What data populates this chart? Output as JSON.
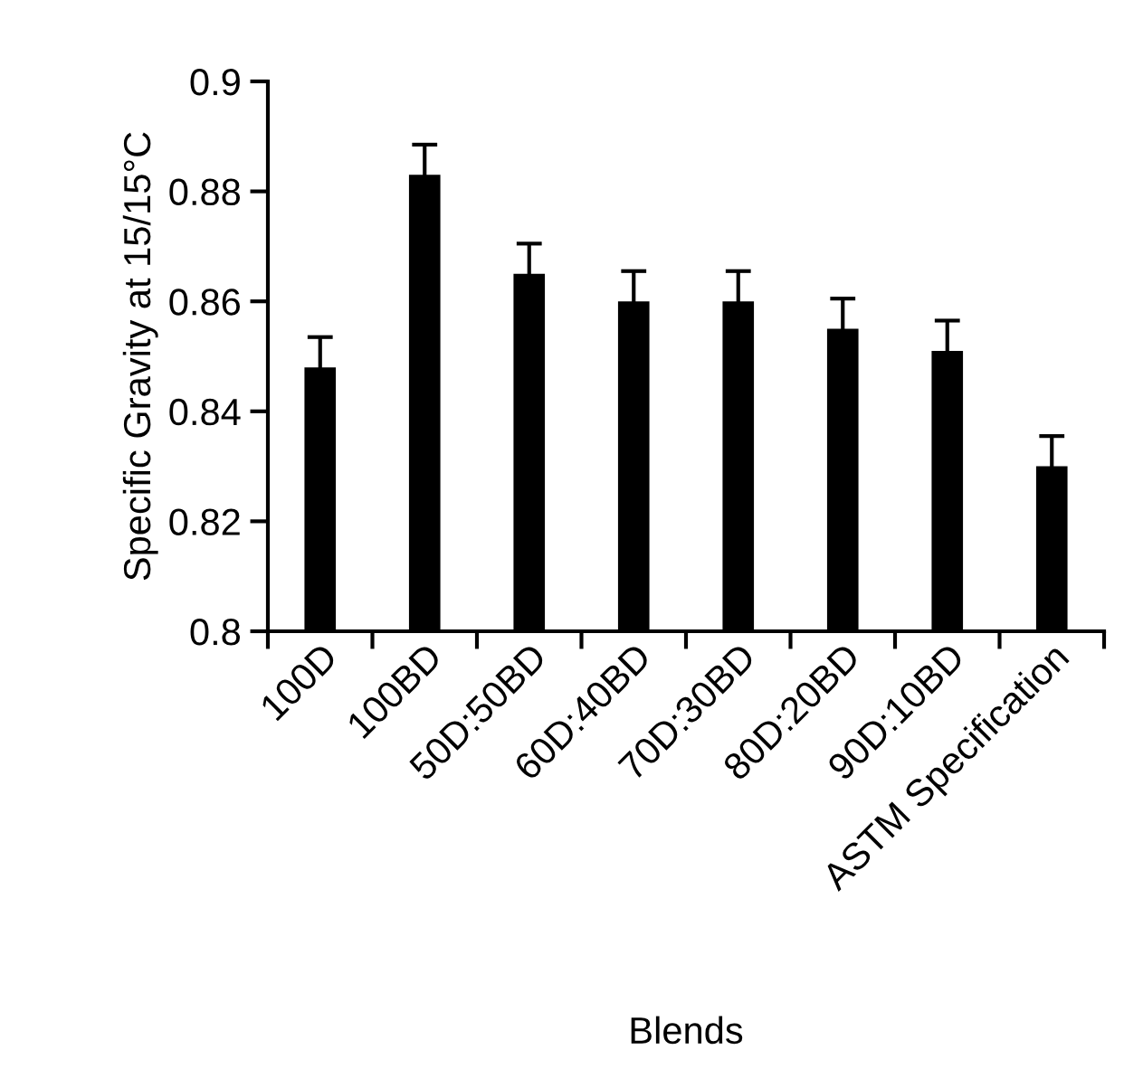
{
  "chart_data": {
    "type": "bar",
    "xlabel": "Blends",
    "ylabel": "Specific Gravity at 15/15°C",
    "categories": [
      "100D",
      "100BD",
      "50D:50BD",
      "60D:40BD",
      "70D:30BD",
      "80D:20BD",
      "90D:10BD",
      "ASTM Specification"
    ],
    "values": [
      0.848,
      0.883,
      0.865,
      0.86,
      0.86,
      0.855,
      0.851,
      0.83
    ],
    "errors": [
      0.0055,
      0.0055,
      0.0055,
      0.0055,
      0.0055,
      0.0055,
      0.0055,
      0.0055
    ],
    "color": "#000000",
    "ylim": [
      0.8,
      0.9
    ],
    "yticks": [
      0.8,
      0.82,
      0.84,
      0.86,
      0.88,
      0.9
    ],
    "grid": false,
    "legend": false
  }
}
